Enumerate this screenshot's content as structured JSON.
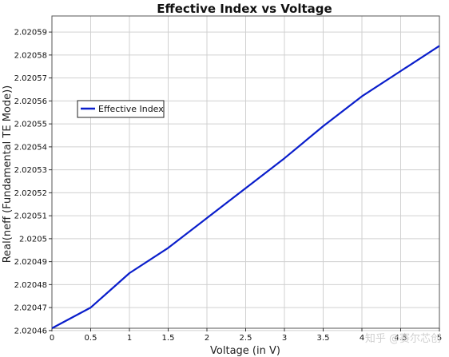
{
  "chart_data": {
    "type": "line",
    "title": "Effective Index vs Voltage",
    "xlabel": "Voltage (in V)",
    "ylabel": "Real(neff (Fundamental TE Mode))",
    "xlim": [
      0,
      5
    ],
    "ylim": [
      2.020461,
      2.020597
    ],
    "x_ticks": [
      0,
      0.5,
      1,
      1.5,
      2,
      2.5,
      3,
      3.5,
      4,
      4.5,
      5
    ],
    "x_tick_labels": [
      "0",
      "0.5",
      "1",
      "1.5",
      "2",
      "2.5",
      "3",
      "3.5",
      "4",
      "4.5",
      "5"
    ],
    "y_ticks": [
      2.02046,
      2.02047,
      2.02048,
      2.02049,
      2.0205,
      2.02051,
      2.02052,
      2.02053,
      2.02054,
      2.02055,
      2.02056,
      2.02057,
      2.02058,
      2.02059
    ],
    "y_tick_labels": [
      "2.02046",
      "2.02047",
      "2.02048",
      "2.02049",
      "2.0205",
      "2.02051",
      "2.02052",
      "2.02053",
      "2.02054",
      "2.02055",
      "2.02056",
      "2.02057",
      "2.02058",
      "2.02059"
    ],
    "grid": true,
    "legend_position": "upper-left",
    "series": [
      {
        "name": "Effective Index",
        "color": "#0a1ecb",
        "x": [
          0,
          0.5,
          1,
          1.5,
          2,
          2.5,
          3,
          3.5,
          4,
          4.5,
          5
        ],
        "y": [
          2.020461,
          2.02047,
          2.020485,
          2.020496,
          2.020509,
          2.020522,
          2.020535,
          2.020549,
          2.020562,
          2.020573,
          2.020584
        ]
      }
    ]
  },
  "watermark": {
    "text": "知乎 @赛尔芯创"
  }
}
